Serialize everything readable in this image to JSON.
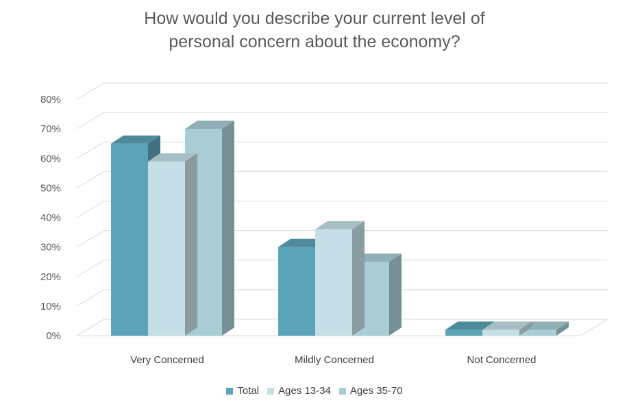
{
  "chart_data": {
    "type": "bar",
    "title": "How would you describe your current level of personal concern about the economy?",
    "title_lines": [
      "How would you describe your current level of",
      "personal concern about the economy?"
    ],
    "categories": [
      "Very Concerned",
      "Mildly Concerned",
      "Not Concerned"
    ],
    "series": [
      {
        "name": "Total",
        "values": [
          65,
          30,
          2
        ],
        "color": "#5BA3B8"
      },
      {
        "name": "Ages 13-34",
        "values": [
          59,
          36,
          2
        ],
        "color": "#C4E0E6"
      },
      {
        "name": "Ages 35-70",
        "values": [
          70,
          25,
          2
        ],
        "color": "#A9CDD5"
      }
    ],
    "ylim": [
      0,
      80
    ],
    "y_ticks": [
      "0%",
      "10%",
      "20%",
      "30%",
      "40%",
      "50%",
      "60%",
      "70%",
      "80%"
    ],
    "grid": true,
    "three_d": true,
    "legend_position": "bottom"
  }
}
